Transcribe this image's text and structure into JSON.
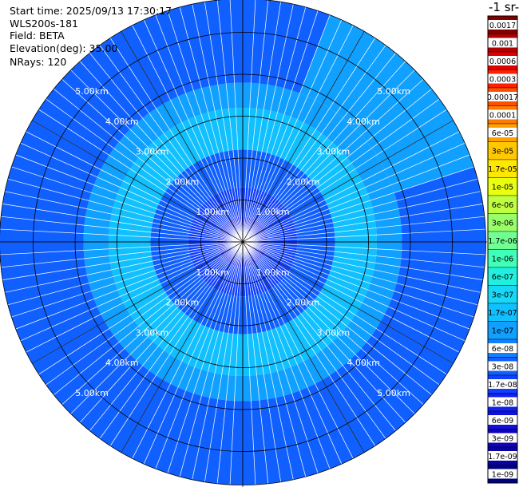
{
  "header": {
    "start_time": "Start time: 2025/09/13 17:30:17",
    "instrument": "WLS200s-181",
    "field": "Field: BETA",
    "elevation": "Elevation(deg): 35.00",
    "nrays": "NRays: 120"
  },
  "chart_data": {
    "type": "heatmap",
    "projection": "polar",
    "grid": true,
    "rays": 120,
    "range_rings_km": [
      1,
      2,
      3,
      4,
      5
    ],
    "ring_labels": [
      "1.00km",
      "2.00km",
      "3.00km",
      "4.00km",
      "5.00km"
    ],
    "max_range_km": 5.8,
    "colorbar": {
      "unit_fragment": "-1 sr-",
      "ticks": [
        "0.0017",
        "0.001",
        "0.0006",
        "0.0003",
        "0.00017",
        "0.0001",
        "6e-05",
        "3e-05",
        "1.7e-05",
        "1e-05",
        "6e-06",
        "3e-06",
        "1.7e-06",
        "1e-06",
        "6e-07",
        "3e-07",
        "1.7e-07",
        "1e-07",
        "6e-08",
        "3e-08",
        "1.7e-08",
        "1e-08",
        "6e-09",
        "3e-09",
        "1.7e-09",
        "1e-09"
      ],
      "colors": [
        "#800000",
        "#b00000",
        "#e00000",
        "#ff2000",
        "#ff5000",
        "#ff7a00",
        "#ffa000",
        "#ffc800",
        "#ffe800",
        "#e8ff10",
        "#c0ff40",
        "#98ff68",
        "#70ff90",
        "#40ffb8",
        "#20f0e0",
        "#18d8f8",
        "#10c0ff",
        "#10a0ff",
        "#1080ff",
        "#1060ff",
        "#1040ff",
        "#1020f0",
        "#1010d8",
        "#1000c0",
        "#0a00a0",
        "#000080"
      ]
    },
    "beta_by_range": [
      {
        "range_km": [
          0.0,
          0.6
        ],
        "beta": "1e-08"
      },
      {
        "range_km": [
          0.6,
          1.3
        ],
        "beta": "1.7e-08"
      },
      {
        "range_km": [
          1.3,
          2.2
        ],
        "beta": "3e-08"
      },
      {
        "range_km": [
          2.2,
          3.2
        ],
        "beta": "1.7e-07"
      },
      {
        "range_km": [
          3.2,
          3.8
        ],
        "beta": "1e-07"
      },
      {
        "range_km": [
          3.8,
          5.8
        ],
        "beta": "3e-08"
      }
    ],
    "azimuthal_variation": {
      "enhanced_sector": "north-east",
      "beta": "1e-07"
    }
  }
}
